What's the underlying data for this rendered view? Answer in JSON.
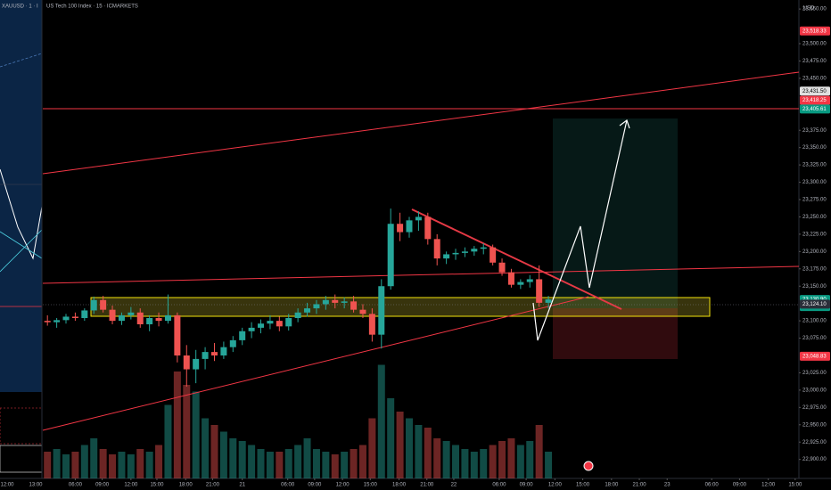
{
  "chart_data": {
    "type": "candlestick",
    "title": "US Tech 100 Index · 15 · ICMARKETS",
    "currency": "USD",
    "up_color": "#26a69a",
    "down_color": "#ef5350",
    "grid": false,
    "open": [
      23100,
      23098,
      23101,
      23106,
      23104,
      23115,
      23130,
      23116,
      23100,
      23108,
      23112,
      23095,
      23104,
      23100,
      23108,
      23050,
      23030,
      23045,
      23055,
      23050,
      23062,
      23072,
      23085,
      23090,
      23096,
      23100,
      23092,
      23104,
      23112,
      23118,
      23124,
      23130,
      23126,
      23128,
      23116,
      23110,
      23080,
      23150,
      23240,
      23228,
      23245,
      23250,
      23218,
      23190,
      23196,
      23198,
      23200,
      23204,
      23206,
      23184,
      23170,
      23152,
      23156,
      23160,
      23126
    ],
    "high": [
      23108,
      23104,
      23110,
      23112,
      23118,
      23135,
      23136,
      23122,
      23112,
      23120,
      23118,
      23108,
      23112,
      23138,
      23112,
      23065,
      23058,
      23062,
      23068,
      23070,
      23078,
      23090,
      23098,
      23102,
      23108,
      23106,
      23110,
      23118,
      23126,
      23130,
      23136,
      23138,
      23134,
      23136,
      23124,
      23118,
      23160,
      23262,
      23256,
      23250,
      23258,
      23256,
      23225,
      23200,
      23204,
      23206,
      23208,
      23212,
      23210,
      23190,
      23175,
      23160,
      23166,
      23180,
      23136
    ],
    "low": [
      23093,
      23090,
      23096,
      23100,
      23100,
      23110,
      23112,
      23095,
      23094,
      23102,
      23090,
      23085,
      23092,
      23096,
      23040,
      23005,
      23010,
      23030,
      23042,
      23045,
      23055,
      23065,
      23075,
      23082,
      23088,
      23085,
      23086,
      23098,
      23106,
      23110,
      23116,
      23118,
      23118,
      23112,
      23104,
      23070,
      23060,
      23145,
      23215,
      23220,
      23230,
      23210,
      23180,
      23182,
      23188,
      23192,
      23194,
      23196,
      23180,
      23165,
      23148,
      23146,
      23148,
      23120,
      23118
    ],
    "close": [
      23098,
      23101,
      23106,
      23104,
      23115,
      23130,
      23116,
      23100,
      23108,
      23112,
      23095,
      23104,
      23100,
      23108,
      23050,
      23030,
      23045,
      23055,
      23050,
      23062,
      23072,
      23085,
      23090,
      23096,
      23100,
      23092,
      23104,
      23112,
      23118,
      23124,
      23130,
      23126,
      23128,
      23116,
      23110,
      23080,
      23150,
      23240,
      23228,
      23245,
      23250,
      23218,
      23190,
      23196,
      23198,
      23200,
      23204,
      23206,
      23184,
      23170,
      23152,
      23156,
      23160,
      23126,
      23130.9
    ],
    "volume": [
      20,
      22,
      18,
      20,
      25,
      30,
      22,
      18,
      20,
      18,
      22,
      20,
      25,
      55,
      80,
      70,
      65,
      45,
      40,
      35,
      30,
      28,
      25,
      22,
      20,
      20,
      22,
      25,
      30,
      22,
      20,
      18,
      20,
      22,
      25,
      45,
      85,
      60,
      50,
      45,
      40,
      38,
      30,
      28,
      25,
      22,
      20,
      22,
      25,
      28,
      30,
      25,
      28,
      40,
      20
    ],
    "volume_lim": [
      0,
      100
    ],
    "xlim": [
      -0.5,
      81
    ],
    "xticks": [
      {
        "value": 3,
        "label": "06:00"
      },
      {
        "value": 5.9,
        "label": "09:00"
      },
      {
        "value": 9,
        "label": "12:00"
      },
      {
        "value": 11.8,
        "label": "15:00"
      },
      {
        "value": 14.9,
        "label": "18:00"
      },
      {
        "value": 17.8,
        "label": "21:00"
      },
      {
        "value": 21,
        "label": "21"
      },
      {
        "value": 25.9,
        "label": "06:00"
      },
      {
        "value": 28.8,
        "label": "09:00"
      },
      {
        "value": 31.8,
        "label": "12:00"
      },
      {
        "value": 34.8,
        "label": "15:00"
      },
      {
        "value": 37.9,
        "label": "18:00"
      },
      {
        "value": 40.9,
        "label": "21:00"
      },
      {
        "value": 43.8,
        "label": "22"
      },
      {
        "value": 48.7,
        "label": "06:00"
      },
      {
        "value": 51.6,
        "label": "09:00"
      },
      {
        "value": 54.7,
        "label": "12:00"
      },
      {
        "value": 57.7,
        "label": "15:00"
      },
      {
        "value": 60.8,
        "label": "18:00"
      },
      {
        "value": 63.8,
        "label": "21:00"
      },
      {
        "value": 66.8,
        "label": "23"
      },
      {
        "value": 71.6,
        "label": "06:00"
      },
      {
        "value": 74.6,
        "label": "09:00"
      },
      {
        "value": 77.7,
        "label": "12:00"
      },
      {
        "value": 80.6,
        "label": "15:00"
      }
    ],
    "ylim": [
      22870,
      23563
    ],
    "yticks": [
      {
        "value": 23550,
        "label": "23,550.00"
      },
      {
        "value": 23500,
        "label": "23,500.00"
      },
      {
        "value": 23475,
        "label": "23,475.00"
      },
      {
        "value": 23450,
        "label": "23,450.00"
      },
      {
        "value": 23375,
        "label": "23,375.00"
      },
      {
        "value": 23350,
        "label": "23,350.00"
      },
      {
        "value": 23325,
        "label": "23,325.00"
      },
      {
        "value": 23300,
        "label": "23,300.00"
      },
      {
        "value": 23275,
        "label": "23,275.00"
      },
      {
        "value": 23250,
        "label": "23,250.00"
      },
      {
        "value": 23225,
        "label": "23,225.00"
      },
      {
        "value": 23200,
        "label": "23,200.00"
      },
      {
        "value": 23175,
        "label": "23,175.00"
      },
      {
        "value": 23150,
        "label": "23,150.00"
      },
      {
        "value": 23100,
        "label": "23,100.00"
      },
      {
        "value": 23075,
        "label": "23,075.00"
      },
      {
        "value": 23025,
        "label": "23,025.00"
      },
      {
        "value": 23000,
        "label": "23,000.00"
      },
      {
        "value": 22975,
        "label": "22,975.00"
      },
      {
        "value": 22950,
        "label": "22,950.00"
      },
      {
        "value": 22925,
        "label": "22,925.00"
      },
      {
        "value": 22900,
        "label": "22,900.00"
      }
    ],
    "price_tags": [
      {
        "value": 23518.33,
        "label": "23,518.33",
        "color": "#f23645"
      },
      {
        "value": 23431.5,
        "label": "23,431.50",
        "color": "#e0e0e0"
      },
      {
        "value": 23418.25,
        "label": "23,418.25",
        "color": "#f23645"
      },
      {
        "value": 23405.61,
        "label": "23,405.61",
        "color": "#089981"
      },
      {
        "value": 23130.9,
        "label": "23,130.90",
        "color": "#089981",
        "countdown": "07:24"
      },
      {
        "value": 23124.1,
        "label": "23,124.10",
        "color": "#2a2e39"
      },
      {
        "value": 23048.83,
        "label": "23,048.83",
        "color": "#f23645"
      }
    ]
  },
  "left_pane": {
    "title": "XAUUSD · 1 · I",
    "time_labels": [
      "12:00",
      "13:00"
    ]
  }
}
